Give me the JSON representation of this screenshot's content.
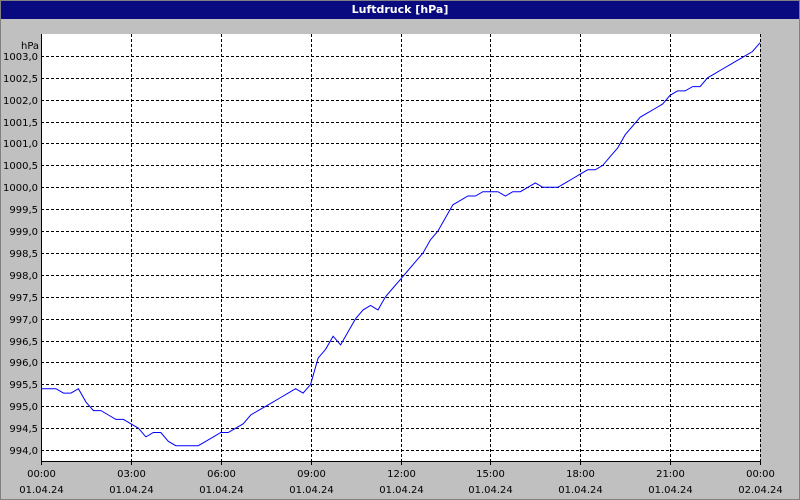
{
  "window": {
    "title": "Luftdruck [hPa]"
  },
  "chart_data": {
    "type": "line",
    "title": "Luftdruck [hPa]",
    "ylabel": "hPa",
    "xlabel": "",
    "ylim": [
      993.75,
      1003.5
    ],
    "ytick_values": [
      994.0,
      994.5,
      995.0,
      995.5,
      996.0,
      996.5,
      997.0,
      997.5,
      998.0,
      998.5,
      999.0,
      999.5,
      1000.0,
      1000.5,
      1001.0,
      1001.5,
      1002.0,
      1002.5,
      1003.0
    ],
    "ytick_labels": [
      "994,0",
      "994,5",
      "995,0",
      "995,5",
      "996,0",
      "996,5",
      "997,0",
      "997,5",
      "998,0",
      "998,5",
      "999,0",
      "999,5",
      "1000,0",
      "1000,5",
      "1001,0",
      "1001,5",
      "1002,0",
      "1002,5",
      "1003,0"
    ],
    "xlim": [
      0,
      24
    ],
    "xtick_hours": [
      0,
      3,
      6,
      9,
      12,
      15,
      18,
      21,
      24
    ],
    "xtick_labels": [
      {
        "time": "00:00",
        "date": "01.04.24"
      },
      {
        "time": "03:00",
        "date": "01.04.24"
      },
      {
        "time": "06:00",
        "date": "01.04.24"
      },
      {
        "time": "09:00",
        "date": "01.04.24"
      },
      {
        "time": "12:00",
        "date": "01.04.24"
      },
      {
        "time": "15:00",
        "date": "01.04.24"
      },
      {
        "time": "18:00",
        "date": "01.04.24"
      },
      {
        "time": "21:00",
        "date": "01.04.24"
      },
      {
        "time": "00:00",
        "date": "02.04.24"
      }
    ],
    "grid": true,
    "series": [
      {
        "color": "#0000ff",
        "x": [
          0,
          0.25,
          0.5,
          0.75,
          1,
          1.25,
          1.5,
          1.75,
          2,
          2.25,
          2.5,
          2.75,
          3,
          3.25,
          3.5,
          3.75,
          4,
          4.25,
          4.5,
          4.75,
          5,
          5.25,
          5.5,
          5.75,
          6,
          6.25,
          6.5,
          6.75,
          7,
          7.25,
          7.5,
          7.75,
          8,
          8.25,
          8.5,
          8.75,
          9,
          9.25,
          9.5,
          9.75,
          10,
          10.25,
          10.5,
          10.75,
          11,
          11.25,
          11.5,
          11.75,
          12,
          12.25,
          12.5,
          12.75,
          13,
          13.25,
          13.5,
          13.75,
          14,
          14.25,
          14.5,
          14.75,
          15,
          15.25,
          15.5,
          15.75,
          16,
          16.25,
          16.5,
          16.75,
          17,
          17.25,
          17.5,
          17.75,
          18,
          18.25,
          18.5,
          18.75,
          19,
          19.25,
          19.5,
          19.75,
          20,
          20.25,
          20.5,
          20.75,
          21,
          21.25,
          21.5,
          21.75,
          22,
          22.25,
          22.5,
          22.75,
          23,
          23.25,
          23.5,
          23.75,
          24
        ],
        "y": [
          995.4,
          995.4,
          995.4,
          995.3,
          995.3,
          995.4,
          995.1,
          994.9,
          994.9,
          994.8,
          994.7,
          994.7,
          994.6,
          994.5,
          994.3,
          994.4,
          994.4,
          994.2,
          994.1,
          994.1,
          994.1,
          994.1,
          994.2,
          994.3,
          994.4,
          994.4,
          994.5,
          994.6,
          994.8,
          994.9,
          995.0,
          995.1,
          995.2,
          995.3,
          995.4,
          995.3,
          995.5,
          996.1,
          996.3,
          996.6,
          996.4,
          996.7,
          997.0,
          997.2,
          997.3,
          997.2,
          997.5,
          997.7,
          997.9,
          998.1,
          998.3,
          998.5,
          998.8,
          999.0,
          999.3,
          999.6,
          999.7,
          999.8,
          999.8,
          999.9,
          999.9,
          999.9,
          999.8,
          999.9,
          999.9,
          1000.0,
          1000.1,
          1000.0,
          1000.0,
          1000.0,
          1000.1,
          1000.2,
          1000.3,
          1000.4,
          1000.4,
          1000.5,
          1000.7,
          1000.9,
          1001.2,
          1001.4,
          1001.6,
          1001.7,
          1001.8,
          1001.9,
          1002.1,
          1002.2,
          1002.2,
          1002.3,
          1002.3,
          1002.5,
          1002.6,
          1002.7,
          1002.8,
          1002.9,
          1003.0,
          1003.1,
          1003.3
        ]
      }
    ]
  }
}
